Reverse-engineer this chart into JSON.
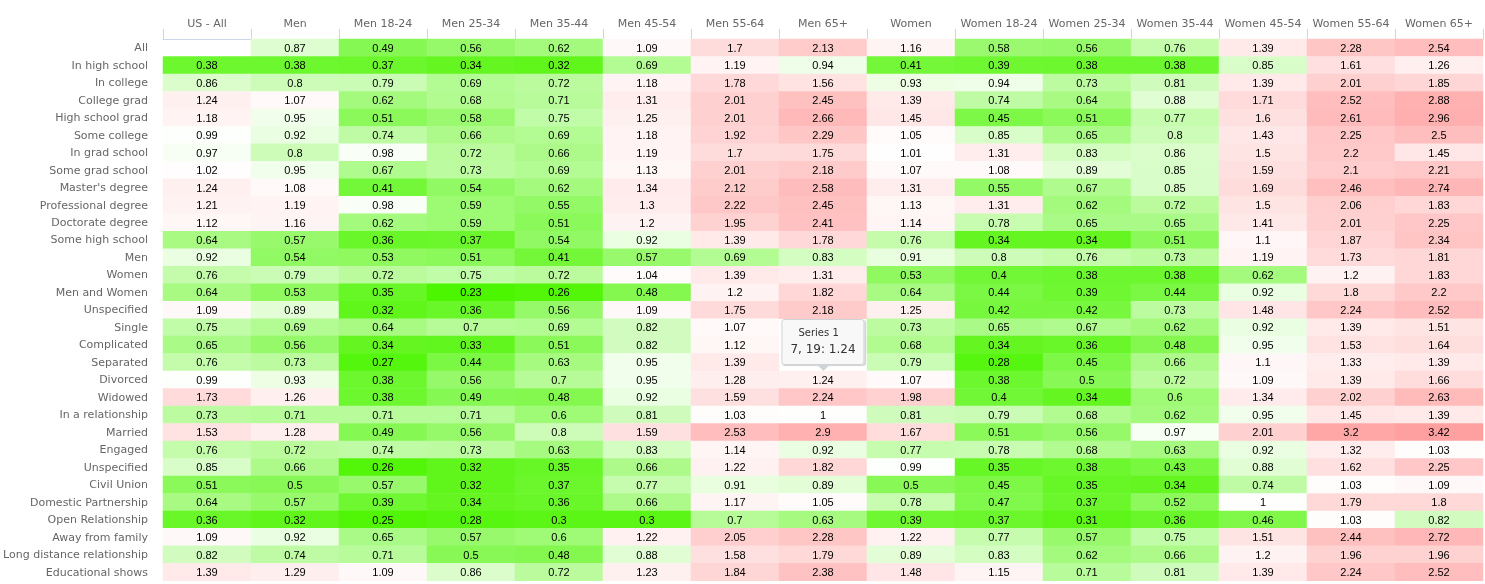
{
  "chart_data": {
    "type": "heatmap",
    "categories": [
      "US - All",
      "Men",
      "Men 18-24",
      "Men 25-34",
      "Men 35-44",
      "Men 45-54",
      "Men 55-64",
      "Men 65+",
      "Women",
      "Women 18-24",
      "Women 25-34",
      "Women 35-44",
      "Women 45-54",
      "Women 55-64",
      "Women 65+"
    ],
    "y_categories": [
      "All",
      "In high school",
      "In college",
      "College grad",
      "High school grad",
      "Some college",
      "In grad school",
      "Some grad school",
      "Master's degree",
      "Professional degree",
      "Doctorate degree",
      "Some high school",
      "Men",
      "Women",
      "Men and Women",
      "Unspecified",
      "Single",
      "Complicated",
      "Separated",
      "Divorced",
      "Widowed",
      "In a relationship",
      "Married",
      "Engaged",
      "Unspecified",
      "Civil Union",
      "Domestic Partnership",
      "Open Relationship",
      "Away from family",
      "Long distance relationship",
      "Educational shows"
    ],
    "cells": [
      [
        null,
        0.87,
        0.49,
        0.56,
        0.62,
        1.09,
        1.7,
        2.13,
        1.16,
        0.58,
        0.56,
        0.76,
        1.39,
        2.28,
        2.54
      ],
      [
        0.38,
        0.38,
        0.37,
        0.34,
        0.32,
        0.69,
        1.19,
        0.94,
        0.41,
        0.39,
        0.38,
        0.38,
        0.85,
        1.61,
        1.26
      ],
      [
        0.86,
        0.8,
        0.79,
        0.69,
        0.72,
        1.18,
        1.78,
        1.56,
        0.93,
        0.94,
        0.73,
        0.81,
        1.39,
        2.01,
        1.85
      ],
      [
        1.24,
        1.07,
        0.62,
        0.68,
        0.71,
        1.31,
        2.01,
        2.45,
        1.39,
        0.74,
        0.64,
        0.88,
        1.71,
        2.52,
        2.88
      ],
      [
        1.18,
        0.95,
        0.51,
        0.58,
        0.75,
        1.25,
        2.01,
        2.66,
        1.45,
        0.45,
        0.51,
        0.77,
        1.6,
        2.61,
        2.96
      ],
      [
        0.99,
        0.92,
        0.74,
        0.66,
        0.69,
        1.18,
        1.92,
        2.29,
        1.05,
        0.85,
        0.65,
        0.8,
        1.43,
        2.25,
        2.5
      ],
      [
        0.97,
        0.8,
        0.98,
        0.72,
        0.66,
        1.19,
        1.7,
        1.75,
        1.01,
        1.31,
        0.83,
        0.86,
        1.5,
        2.2,
        1.45
      ],
      [
        1.02,
        0.95,
        0.67,
        0.73,
        0.69,
        1.13,
        2.01,
        2.18,
        1.07,
        1.08,
        0.89,
        0.85,
        1.59,
        2.1,
        2.21
      ],
      [
        1.24,
        1.08,
        0.41,
        0.54,
        0.62,
        1.34,
        2.12,
        2.58,
        1.31,
        0.55,
        0.67,
        0.85,
        1.69,
        2.46,
        2.74
      ],
      [
        1.21,
        1.19,
        0.98,
        0.59,
        0.55,
        1.3,
        2.22,
        2.45,
        1.13,
        1.31,
        0.62,
        0.72,
        1.5,
        2.06,
        1.83
      ],
      [
        1.12,
        1.16,
        0.62,
        0.59,
        0.51,
        1.2,
        1.95,
        2.41,
        1.14,
        0.78,
        0.65,
        0.65,
        1.41,
        2.01,
        2.25
      ],
      [
        0.64,
        0.57,
        0.36,
        0.37,
        0.54,
        0.92,
        1.39,
        1.78,
        0.76,
        0.34,
        0.34,
        0.51,
        1.1,
        1.87,
        2.34
      ],
      [
        0.92,
        0.54,
        0.53,
        0.51,
        0.41,
        0.57,
        0.69,
        0.83,
        0.91,
        0.8,
        0.76,
        0.73,
        1.19,
        1.73,
        1.81
      ],
      [
        0.76,
        0.79,
        0.72,
        0.75,
        0.72,
        1.04,
        1.39,
        1.31,
        0.53,
        0.4,
        0.38,
        0.38,
        0.62,
        1.2,
        1.83
      ],
      [
        0.64,
        0.53,
        0.35,
        0.23,
        0.26,
        0.48,
        1.2,
        1.82,
        0.64,
        0.44,
        0.39,
        0.44,
        0.92,
        1.8,
        2.2
      ],
      [
        1.09,
        0.89,
        0.32,
        0.36,
        0.56,
        1.09,
        1.75,
        2.18,
        1.25,
        0.42,
        0.42,
        0.73,
        1.48,
        2.24,
        2.52
      ],
      [
        0.75,
        0.69,
        0.64,
        0.7,
        0.69,
        0.82,
        1.07,
        null,
        0.73,
        0.65,
        0.67,
        0.62,
        0.92,
        1.39,
        1.51
      ],
      [
        0.65,
        0.56,
        0.34,
        0.33,
        0.51,
        0.82,
        1.12,
        null,
        0.68,
        0.34,
        0.36,
        0.48,
        0.95,
        1.53,
        1.64
      ],
      [
        0.76,
        0.73,
        0.27,
        0.44,
        0.63,
        0.95,
        1.39,
        null,
        0.79,
        0.28,
        0.45,
        0.66,
        1.1,
        1.33,
        1.39
      ],
      [
        0.99,
        0.93,
        0.38,
        0.56,
        0.7,
        0.95,
        1.28,
        1.24,
        1.07,
        0.38,
        0.5,
        0.72,
        1.09,
        1.39,
        1.66
      ],
      [
        1.73,
        1.26,
        0.38,
        0.49,
        0.48,
        0.92,
        1.59,
        2.24,
        1.98,
        0.4,
        0.34,
        0.6,
        1.34,
        2.02,
        2.63
      ],
      [
        0.73,
        0.71,
        0.71,
        0.71,
        0.6,
        0.81,
        1.03,
        1,
        0.81,
        0.79,
        0.68,
        0.62,
        0.95,
        1.45,
        1.39
      ],
      [
        1.53,
        1.28,
        0.49,
        0.56,
        0.8,
        1.59,
        2.53,
        2.9,
        1.67,
        0.51,
        0.56,
        0.97,
        2.01,
        3.2,
        3.42
      ],
      [
        0.76,
        0.72,
        0.74,
        0.73,
        0.63,
        0.83,
        1.14,
        0.92,
        0.77,
        0.78,
        0.68,
        0.63,
        0.92,
        1.32,
        1.03
      ],
      [
        0.85,
        0.66,
        0.26,
        0.32,
        0.35,
        0.66,
        1.22,
        1.82,
        0.99,
        0.35,
        0.38,
        0.43,
        0.88,
        1.62,
        2.25
      ],
      [
        0.51,
        0.5,
        0.57,
        0.32,
        0.37,
        0.77,
        0.91,
        0.89,
        0.5,
        0.45,
        0.35,
        0.34,
        0.74,
        1.03,
        1.09
      ],
      [
        0.64,
        0.57,
        0.39,
        0.34,
        0.36,
        0.66,
        1.17,
        1.05,
        0.78,
        0.47,
        0.37,
        0.52,
        1,
        1.79,
        1.8
      ],
      [
        0.36,
        0.32,
        0.25,
        0.28,
        0.3,
        0.3,
        0.7,
        0.63,
        0.39,
        0.37,
        0.31,
        0.36,
        0.46,
        1.03,
        0.82
      ],
      [
        1.09,
        0.92,
        0.65,
        0.57,
        0.6,
        1.22,
        2.05,
        2.28,
        1.22,
        0.77,
        0.57,
        0.75,
        1.51,
        2.44,
        2.72
      ],
      [
        0.82,
        0.74,
        0.71,
        0.5,
        0.48,
        0.88,
        1.58,
        1.79,
        0.89,
        0.83,
        0.62,
        0.66,
        1.2,
        1.96,
        1.96
      ],
      [
        1.39,
        1.29,
        1.09,
        0.86,
        0.72,
        1.23,
        1.84,
        2.38,
        1.48,
        1.15,
        0.71,
        0.81,
        1.39,
        2.24,
        2.52
      ]
    ],
    "data_labels": true,
    "annotations": [
      "Series 1",
      "7, 19: 1.24"
    ]
  }
}
